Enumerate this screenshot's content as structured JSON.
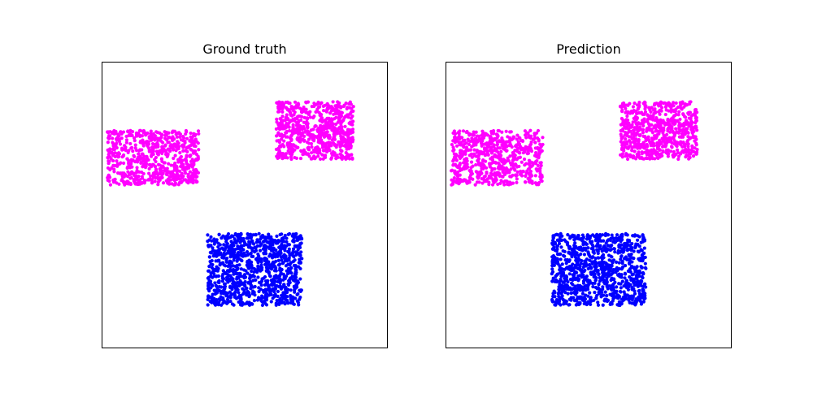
{
  "chart_data": [
    {
      "type": "scatter",
      "title": "Ground truth",
      "xlabel": "",
      "ylabel": "",
      "xlim": [
        0,
        1
      ],
      "ylim": [
        0,
        1
      ],
      "grid": false,
      "show_ticks": false,
      "series": [
        {
          "color": "#ff00ff",
          "marker": "circle",
          "description_region": {
            "x_range": [
              0.02,
              0.34
            ],
            "y_range": [
              0.57,
              0.76
            ]
          },
          "n_points": 700
        },
        {
          "color": "#ff00ff",
          "marker": "circle",
          "description_region": {
            "x_range": [
              0.61,
              0.88
            ],
            "y_range": [
              0.66,
              0.86
            ]
          },
          "n_points": 700
        },
        {
          "color": "#0000ff",
          "marker": "circle",
          "description_region": {
            "x_range": [
              0.37,
              0.7
            ],
            "y_range": [
              0.15,
              0.4
            ]
          },
          "n_points": 1000
        }
      ]
    },
    {
      "type": "scatter",
      "title": "Prediction",
      "xlabel": "",
      "ylabel": "",
      "xlim": [
        0,
        1
      ],
      "ylim": [
        0,
        1
      ],
      "grid": false,
      "show_ticks": false,
      "series": [
        {
          "color": "#ff00ff",
          "marker": "circle",
          "description_region": {
            "x_range": [
              0.02,
              0.34
            ],
            "y_range": [
              0.57,
              0.76
            ]
          },
          "n_points": 700
        },
        {
          "color": "#ff00ff",
          "marker": "circle",
          "description_region": {
            "x_range": [
              0.61,
              0.88
            ],
            "y_range": [
              0.66,
              0.86
            ]
          },
          "n_points": 700
        },
        {
          "color": "#0000ff",
          "marker": "circle",
          "description_region": {
            "x_range": [
              0.37,
              0.7
            ],
            "y_range": [
              0.15,
              0.4
            ]
          },
          "n_points": 1000
        }
      ]
    }
  ]
}
